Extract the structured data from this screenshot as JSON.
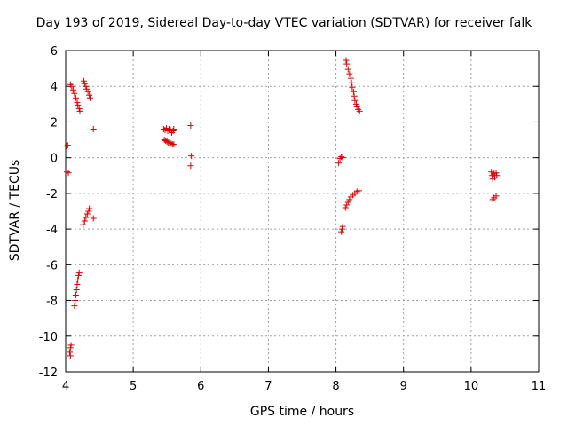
{
  "chart_data": {
    "type": "scatter",
    "title": "Day 193 of 2019, Sidereal Day-to-day VTEC variation (SDTVAR) for receiver falk",
    "xlabel": "GPS time / hours",
    "ylabel": "SDTVAR / TECUs",
    "xlim": [
      4,
      11
    ],
    "ylim": [
      -12,
      6
    ],
    "x_ticks": [
      4,
      5,
      6,
      7,
      8,
      9,
      10,
      11
    ],
    "y_ticks": [
      -12,
      -10,
      -8,
      -6,
      -4,
      -2,
      0,
      2,
      4,
      6
    ],
    "grid": true,
    "marker": "plus",
    "color": "#e00000",
    "series": [
      {
        "points": [
          [
            4.01,
            0.65
          ],
          [
            4.03,
            0.7
          ],
          [
            4.02,
            -0.8
          ],
          [
            4.04,
            -0.85
          ],
          [
            4.07,
            4.1
          ],
          [
            4.09,
            4.0
          ],
          [
            4.11,
            3.8
          ],
          [
            4.13,
            3.6
          ],
          [
            4.15,
            3.35
          ],
          [
            4.17,
            3.1
          ],
          [
            4.18,
            2.95
          ],
          [
            4.2,
            2.75
          ],
          [
            4.21,
            2.6
          ],
          [
            4.27,
            4.3
          ],
          [
            4.28,
            4.15
          ],
          [
            4.3,
            4.0
          ],
          [
            4.31,
            3.85
          ],
          [
            4.33,
            3.7
          ],
          [
            4.35,
            3.5
          ],
          [
            4.36,
            3.35
          ],
          [
            4.41,
            1.6
          ],
          [
            4.26,
            -3.75
          ],
          [
            4.28,
            -3.55
          ],
          [
            4.3,
            -3.35
          ],
          [
            4.32,
            -3.15
          ],
          [
            4.34,
            -3.0
          ],
          [
            4.35,
            -2.85
          ],
          [
            4.41,
            -3.4
          ],
          [
            4.13,
            -8.3
          ],
          [
            4.14,
            -8.0
          ],
          [
            4.15,
            -7.7
          ],
          [
            4.16,
            -7.4
          ],
          [
            4.17,
            -7.1
          ],
          [
            4.18,
            -6.85
          ],
          [
            4.19,
            -6.6
          ],
          [
            4.2,
            -6.45
          ],
          [
            4.07,
            -10.65
          ],
          [
            4.08,
            -10.5
          ],
          [
            4.06,
            -10.9
          ],
          [
            4.07,
            -11.1
          ],
          [
            5.45,
            1.6
          ],
          [
            5.47,
            1.55
          ],
          [
            5.49,
            1.65
          ],
          [
            5.51,
            1.5
          ],
          [
            5.53,
            1.6
          ],
          [
            5.55,
            1.55
          ],
          [
            5.57,
            1.4
          ],
          [
            5.59,
            1.5
          ],
          [
            5.6,
            1.6
          ],
          [
            5.46,
            1.0
          ],
          [
            5.48,
            0.95
          ],
          [
            5.5,
            0.9
          ],
          [
            5.52,
            0.85
          ],
          [
            5.54,
            0.85
          ],
          [
            5.56,
            0.8
          ],
          [
            5.58,
            0.75
          ],
          [
            5.6,
            0.75
          ],
          [
            5.85,
            1.8
          ],
          [
            5.86,
            0.1
          ],
          [
            5.85,
            -0.45
          ],
          [
            8.04,
            -0.3
          ],
          [
            8.06,
            -0.05
          ],
          [
            8.08,
            0.05
          ],
          [
            8.1,
            0.0
          ],
          [
            8.09,
            -4.0
          ],
          [
            8.1,
            -3.85
          ],
          [
            8.08,
            -4.15
          ],
          [
            8.15,
            5.45
          ],
          [
            8.16,
            5.25
          ],
          [
            8.18,
            4.95
          ],
          [
            8.2,
            4.7
          ],
          [
            8.22,
            4.45
          ],
          [
            8.23,
            4.2
          ],
          [
            8.24,
            3.95
          ],
          [
            8.26,
            3.7
          ],
          [
            8.27,
            3.45
          ],
          [
            8.28,
            3.2
          ],
          [
            8.3,
            3.0
          ],
          [
            8.31,
            2.85
          ],
          [
            8.33,
            2.7
          ],
          [
            8.35,
            2.6
          ],
          [
            8.14,
            -2.8
          ],
          [
            8.16,
            -2.65
          ],
          [
            8.18,
            -2.5
          ],
          [
            8.2,
            -2.35
          ],
          [
            8.22,
            -2.2
          ],
          [
            8.25,
            -2.1
          ],
          [
            8.28,
            -2.0
          ],
          [
            8.31,
            -1.9
          ],
          [
            8.34,
            -1.85
          ],
          [
            10.3,
            -0.8
          ],
          [
            10.31,
            -1.0
          ],
          [
            10.32,
            -1.2
          ],
          [
            10.34,
            -0.9
          ],
          [
            10.35,
            -1.1
          ],
          [
            10.37,
            -0.85
          ],
          [
            10.38,
            -1.0
          ],
          [
            10.32,
            -2.35
          ],
          [
            10.34,
            -2.25
          ],
          [
            10.37,
            -2.15
          ]
        ]
      }
    ]
  }
}
